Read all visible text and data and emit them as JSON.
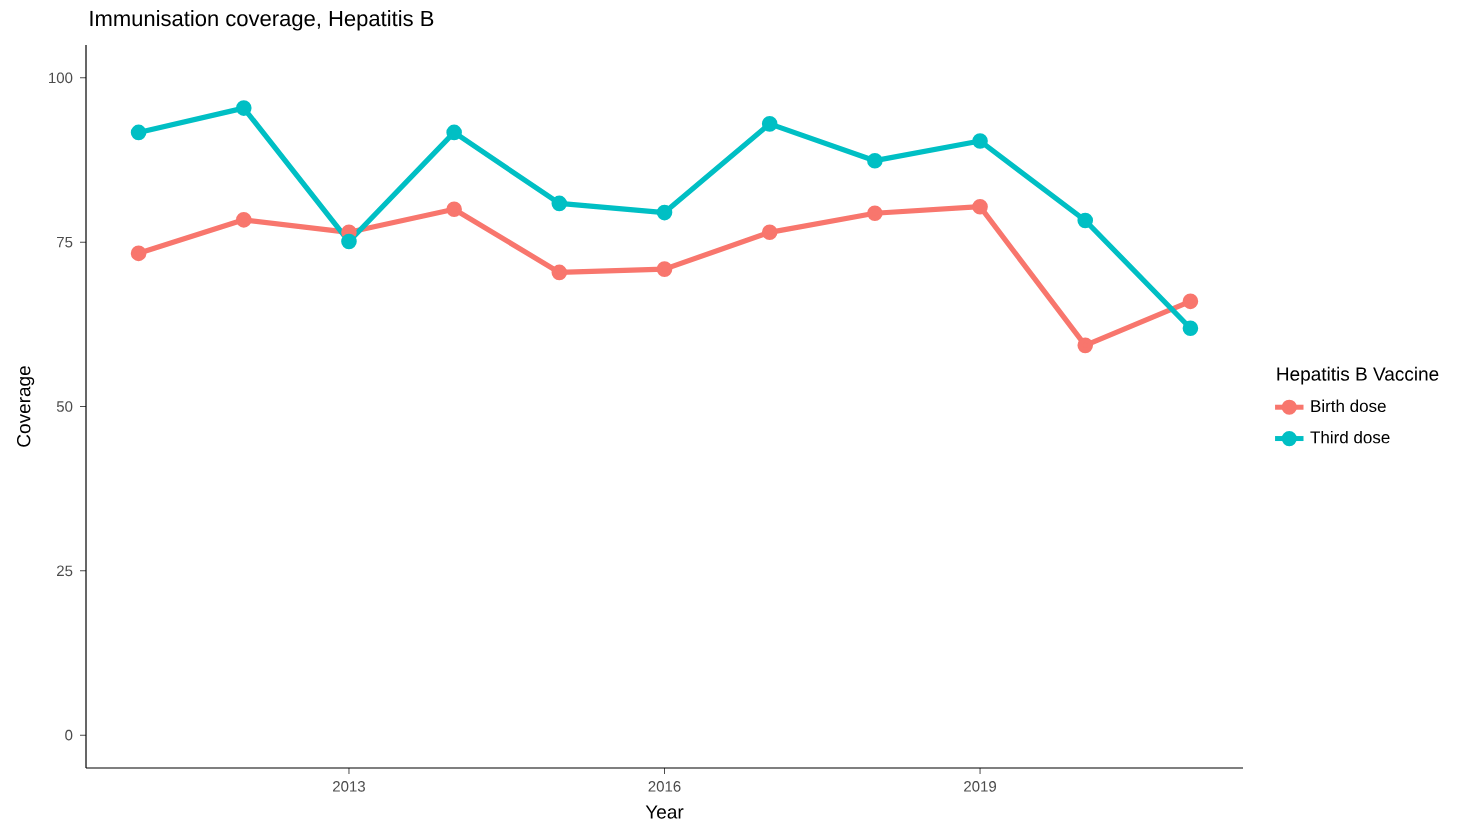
{
  "chart_data": {
    "type": "line",
    "title": "Immunisation coverage, Hepatitis B",
    "xlabel": "Year",
    "ylabel": "Coverage",
    "legend_title": "Hepatitis B Vaccine",
    "x": [
      2011,
      2012,
      2013,
      2014,
      2015,
      2016,
      2017,
      2018,
      2019,
      2020,
      2021
    ],
    "series": [
      {
        "name": "Birth dose",
        "color": "#f8766d",
        "values": [
          73.3,
          78.4,
          76.5,
          80.0,
          70.4,
          70.9,
          76.5,
          79.4,
          80.4,
          59.3,
          66.0
        ]
      },
      {
        "name": "Third dose",
        "color": "#00bfc4",
        "values": [
          91.7,
          95.4,
          75.1,
          91.7,
          80.9,
          79.5,
          93.0,
          87.4,
          90.4,
          78.3,
          61.9
        ]
      }
    ],
    "xlim": [
      2010.5,
      2021.5
    ],
    "ylim": [
      -5,
      105
    ],
    "xticks": [
      2013,
      2016,
      2019
    ],
    "yticks": [
      0,
      25,
      50,
      75,
      100
    ],
    "legend": "right",
    "marker": "circle",
    "line_style": "solid"
  }
}
